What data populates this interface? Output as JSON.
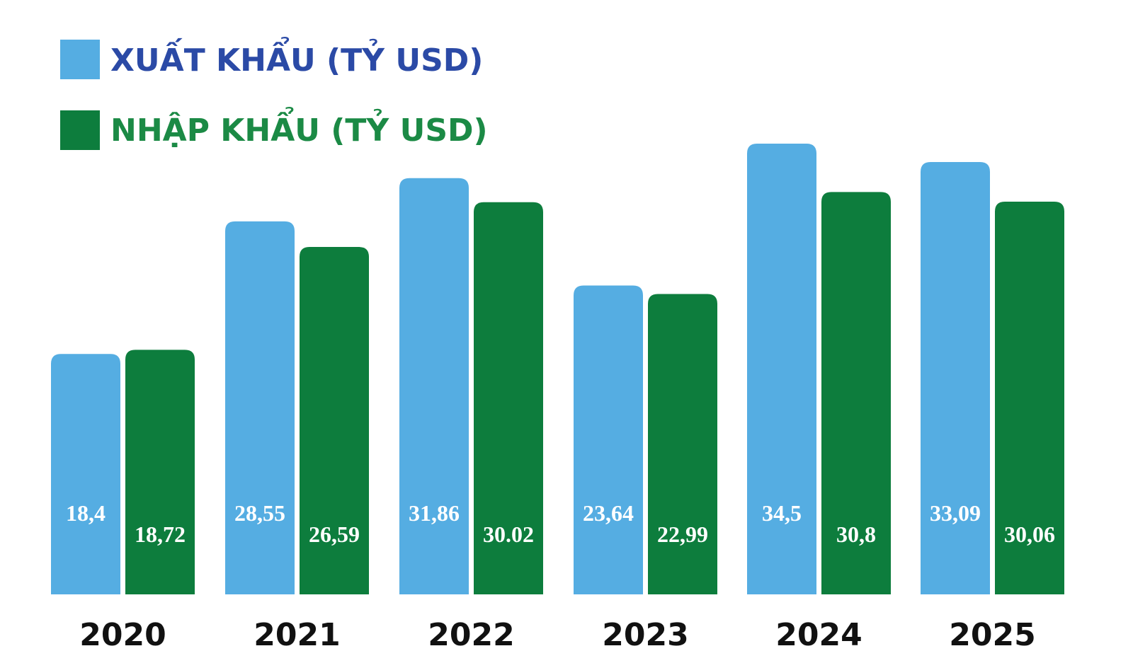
{
  "colors": {
    "export": "#55ade2",
    "import": "#0d7d3d",
    "export_text": "#2b4aa6",
    "import_text": "#1b8a45",
    "year_text": "#111111",
    "value_text": "#ffffff"
  },
  "legend": {
    "export_label": "XUẤT KHẨU (TỶ USD)",
    "import_label": "NHẬP KHẨU (TỶ USD)"
  },
  "chart_data": {
    "type": "bar",
    "title": "",
    "xlabel": "",
    "ylabel": "",
    "grid": false,
    "legend_position": "top-left",
    "categories": [
      "2020",
      "2021",
      "2022",
      "2023",
      "2024",
      "2025"
    ],
    "series": [
      {
        "name": "XUẤT KHẨU (TỶ USD)",
        "values": [
          18.4,
          28.55,
          31.86,
          23.64,
          34.5,
          33.09
        ],
        "labels": [
          "18,4",
          "28,55",
          "31,86",
          "23,64",
          "34,5",
          "33,09"
        ]
      },
      {
        "name": "NHẬP KHẨU (TỶ USD)",
        "values": [
          18.72,
          26.59,
          30.02,
          22.99,
          30.8,
          30.06
        ],
        "labels": [
          "18,72",
          "26,59",
          "30.02",
          "22,99",
          "30,8",
          "30,06"
        ]
      }
    ]
  }
}
